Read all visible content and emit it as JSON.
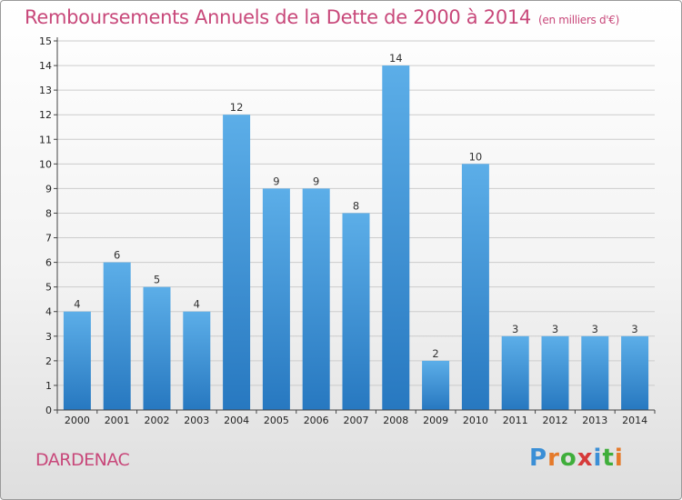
{
  "title": "Remboursements Annuels de la Dette de 2000 à 2014",
  "subtitle": "(en milliers d'€)",
  "commune": "DARDENAC",
  "logo": {
    "text": "Proxiti",
    "letters": [
      {
        "char": "P",
        "color": "#3b8fd6"
      },
      {
        "char": "r",
        "color": "#e57a2a"
      },
      {
        "char": "o",
        "color": "#3fae3b"
      },
      {
        "char": "x",
        "color": "#d63a3a"
      },
      {
        "char": "i",
        "color": "#3b8fd6"
      },
      {
        "char": "t",
        "color": "#3fae3b"
      },
      {
        "char": "i",
        "color": "#e57a2a"
      }
    ]
  },
  "colors": {
    "title": "#c8487a",
    "bar_top": "#5caee8",
    "bar_bottom": "#2778c0",
    "axis": "#444444",
    "grid": "#cccccc"
  },
  "chart_data": {
    "type": "bar",
    "title": "Remboursements Annuels de la Dette de 2000 à 2014",
    "subtitle": "(en milliers d'€)",
    "categories": [
      "2000",
      "2001",
      "2002",
      "2003",
      "2004",
      "2005",
      "2006",
      "2007",
      "2008",
      "2009",
      "2010",
      "2011",
      "2012",
      "2013",
      "2014"
    ],
    "values": [
      4,
      6,
      5,
      4,
      12,
      9,
      9,
      8,
      14,
      2,
      10,
      3,
      3,
      3,
      3
    ],
    "ylim": [
      0,
      15
    ],
    "yticks": [
      0,
      1,
      2,
      3,
      4,
      5,
      6,
      7,
      8,
      9,
      10,
      11,
      12,
      13,
      14,
      15
    ],
    "grid": "horizontal",
    "data_labels": true
  }
}
